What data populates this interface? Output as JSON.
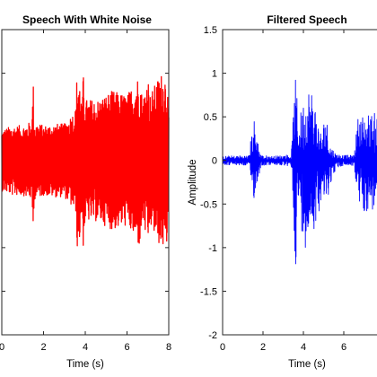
{
  "chart_data": [
    {
      "type": "line",
      "title": "Speech With White Noise",
      "xlabel": "Time (s)",
      "ylabel": "",
      "xlim": [
        0,
        8
      ],
      "ylim": [
        -2,
        1.5
      ],
      "xticks": [
        "0",
        "2",
        "4",
        "6",
        "8"
      ],
      "yticks": [],
      "grid": false,
      "series": [
        {
          "color": "#ff0000",
          "envelope": {
            "t": [
              0,
              0.5,
              1.0,
              1.45,
              1.5,
              1.55,
              2.0,
              2.5,
              3.0,
              3.55,
              3.6,
              3.7,
              3.85,
              3.9,
              4.0,
              4.6,
              5.3,
              6.0,
              6.6,
              6.75,
              7.0,
              7.1,
              7.6,
              7.9,
              8.0
            ],
            "amp": [
              0.35,
              0.4,
              0.4,
              0.45,
              1.0,
              0.45,
              0.4,
              0.42,
              0.42,
              0.6,
              1.0,
              1.0,
              0.6,
              1.0,
              0.7,
              0.7,
              0.8,
              0.75,
              1.0,
              0.7,
              1.0,
              0.75,
              1.0,
              1.0,
              0.5
            ]
          }
        }
      ]
    },
    {
      "type": "line",
      "title": "Filtered Speech",
      "xlabel": "Time (s)",
      "ylabel": "Amplitude",
      "xlim": [
        0,
        8
      ],
      "ylim": [
        -2,
        1.5
      ],
      "xticks": [
        "0",
        "2",
        "4",
        "6"
      ],
      "yticks": [
        "1.5",
        "1",
        "0.5",
        "0",
        "-0.5",
        "-1",
        "-1.5",
        "-2"
      ],
      "grid": false,
      "series": [
        {
          "color": "#0000ff",
          "envelope": {
            "t": [
              0,
              1.3,
              1.45,
              1.55,
              1.7,
              1.9,
              2.5,
              3.4,
              3.55,
              3.62,
              3.7,
              3.8,
              3.9,
              4.1,
              4.3,
              4.5,
              4.7,
              4.9,
              5.1,
              5.3,
              5.6,
              6.0,
              6.5,
              6.7,
              7.0
            ],
            "up": [
              0.05,
              0.06,
              0.35,
              0.5,
              0.3,
              0.06,
              0.05,
              0.07,
              0.8,
              0.95,
              0.7,
              0.5,
              0.6,
              0.8,
              0.9,
              0.8,
              0.5,
              0.3,
              0.6,
              0.2,
              0.08,
              0.06,
              0.06,
              0.5,
              0.55
            ],
            "dn": [
              0.05,
              0.06,
              0.35,
              0.45,
              0.3,
              0.06,
              0.05,
              0.07,
              0.9,
              1.25,
              0.7,
              0.6,
              0.8,
              1.0,
              0.9,
              0.8,
              0.7,
              0.4,
              0.6,
              0.3,
              0.1,
              0.06,
              0.06,
              0.5,
              0.6
            ]
          }
        }
      ]
    }
  ]
}
